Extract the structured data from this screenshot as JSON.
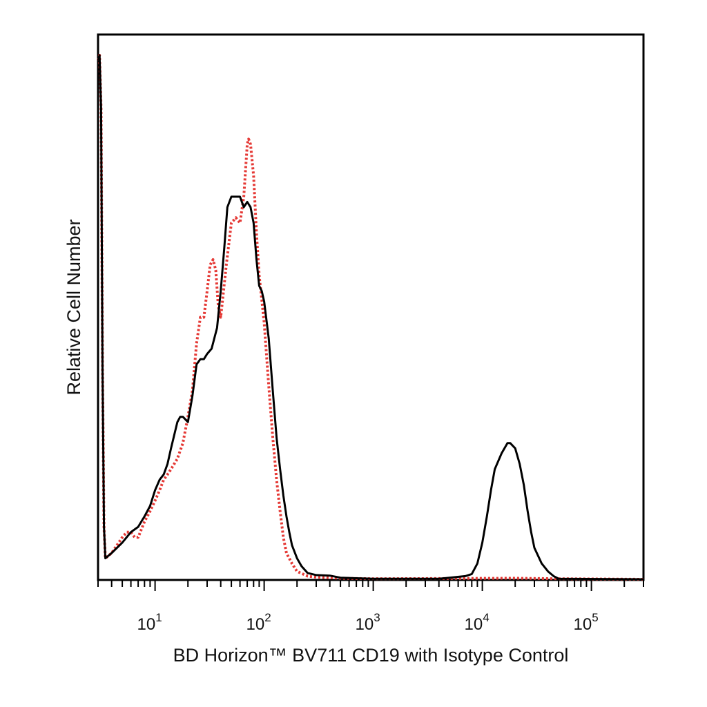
{
  "chart_data": {
    "type": "line",
    "xlabel": "BD Horizon™ BV711 CD19 with Isotype Control",
    "ylabel": "Relative Cell Number",
    "x_scale": "log",
    "xlim": [
      3,
      300000
    ],
    "ylim": [
      0,
      100
    ],
    "x_tick_labels": [
      {
        "base": "10",
        "exp": "1",
        "value": 10
      },
      {
        "base": "10",
        "exp": "2",
        "value": 100
      },
      {
        "base": "10",
        "exp": "3",
        "value": 1000
      },
      {
        "base": "10",
        "exp": "4",
        "value": 10000
      },
      {
        "base": "10",
        "exp": "5",
        "value": 100000
      }
    ],
    "y_ticks": "none",
    "grid": false,
    "legend": "none",
    "series": [
      {
        "color": "#000000",
        "style": "solid",
        "points": [
          [
            3.0,
            99
          ],
          [
            3.1,
            100
          ],
          [
            3.2,
            90
          ],
          [
            3.3,
            40
          ],
          [
            3.4,
            10
          ],
          [
            3.5,
            4
          ],
          [
            4,
            5
          ],
          [
            5,
            7
          ],
          [
            6,
            9
          ],
          [
            7,
            10
          ],
          [
            8,
            12
          ],
          [
            9,
            14
          ],
          [
            10,
            17
          ],
          [
            11,
            19
          ],
          [
            12,
            20
          ],
          [
            13,
            22
          ],
          [
            14,
            25
          ],
          [
            16,
            30
          ],
          [
            17,
            31
          ],
          [
            18,
            31
          ],
          [
            20,
            30
          ],
          [
            22,
            35
          ],
          [
            24,
            41
          ],
          [
            26,
            42
          ],
          [
            28,
            42
          ],
          [
            30,
            43
          ],
          [
            33,
            44
          ],
          [
            37,
            48
          ],
          [
            40,
            55
          ],
          [
            43,
            63
          ],
          [
            46,
            71
          ],
          [
            50,
            73
          ],
          [
            55,
            73
          ],
          [
            60,
            73
          ],
          [
            65,
            71
          ],
          [
            70,
            72
          ],
          [
            75,
            71
          ],
          [
            80,
            68
          ],
          [
            85,
            61
          ],
          [
            90,
            56
          ],
          [
            95,
            55
          ],
          [
            100,
            53
          ],
          [
            110,
            46
          ],
          [
            120,
            36
          ],
          [
            130,
            27
          ],
          [
            140,
            21
          ],
          [
            150,
            16
          ],
          [
            160,
            12
          ],
          [
            170,
            9
          ],
          [
            180,
            6.5
          ],
          [
            200,
            4
          ],
          [
            220,
            2.5
          ],
          [
            250,
            1.2
          ],
          [
            300,
            0.8
          ],
          [
            400,
            0.7
          ],
          [
            500,
            0.3
          ],
          [
            700,
            0.2
          ],
          [
            1000,
            0.1
          ],
          [
            3000,
            0.1
          ],
          [
            4000,
            0.1
          ],
          [
            5000,
            0.3
          ],
          [
            7000,
            0.6
          ],
          [
            8000,
            1
          ],
          [
            9000,
            3
          ],
          [
            10000,
            7
          ],
          [
            11000,
            12
          ],
          [
            12000,
            17
          ],
          [
            13000,
            21
          ],
          [
            15000,
            24
          ],
          [
            17000,
            26
          ],
          [
            18000,
            26
          ],
          [
            20000,
            25
          ],
          [
            22000,
            22
          ],
          [
            24000,
            18
          ],
          [
            26000,
            13
          ],
          [
            28000,
            9
          ],
          [
            30000,
            6
          ],
          [
            35000,
            3
          ],
          [
            40000,
            1.5
          ],
          [
            45000,
            0.6
          ],
          [
            50000,
            0.1
          ],
          [
            300000,
            0
          ]
        ]
      },
      {
        "color": "#e53935",
        "style": "dotted",
        "points": [
          [
            3.0,
            99
          ],
          [
            3.1,
            100
          ],
          [
            3.2,
            90
          ],
          [
            3.3,
            40
          ],
          [
            3.4,
            10
          ],
          [
            3.5,
            4
          ],
          [
            4,
            5
          ],
          [
            5,
            8
          ],
          [
            5.5,
            9
          ],
          [
            6,
            9
          ],
          [
            6.5,
            8
          ],
          [
            7,
            8
          ],
          [
            8,
            11
          ],
          [
            9,
            13
          ],
          [
            10,
            15
          ],
          [
            11,
            17
          ],
          [
            12,
            19
          ],
          [
            13,
            20
          ],
          [
            14,
            21
          ],
          [
            16,
            23
          ],
          [
            18,
            26
          ],
          [
            20,
            31
          ],
          [
            22,
            36
          ],
          [
            24,
            45
          ],
          [
            26,
            50
          ],
          [
            28,
            50
          ],
          [
            30,
            55
          ],
          [
            32,
            60
          ],
          [
            34,
            61
          ],
          [
            36,
            59
          ],
          [
            38,
            52
          ],
          [
            40,
            50
          ],
          [
            45,
            60
          ],
          [
            50,
            68
          ],
          [
            55,
            69
          ],
          [
            60,
            68
          ],
          [
            65,
            73
          ],
          [
            70,
            83
          ],
          [
            72,
            84
          ],
          [
            75,
            83
          ],
          [
            80,
            77
          ],
          [
            85,
            66
          ],
          [
            90,
            58
          ],
          [
            100,
            49
          ],
          [
            110,
            37
          ],
          [
            120,
            27
          ],
          [
            130,
            19
          ],
          [
            140,
            13
          ],
          [
            150,
            8
          ],
          [
            160,
            5
          ],
          [
            180,
            3
          ],
          [
            200,
            1.5
          ],
          [
            250,
            0.6
          ],
          [
            300,
            0.4
          ],
          [
            500,
            0.2
          ],
          [
            1000,
            0.1
          ],
          [
            20000,
            0.2
          ],
          [
            50000,
            0.1
          ],
          [
            300000,
            0
          ]
        ]
      }
    ]
  }
}
